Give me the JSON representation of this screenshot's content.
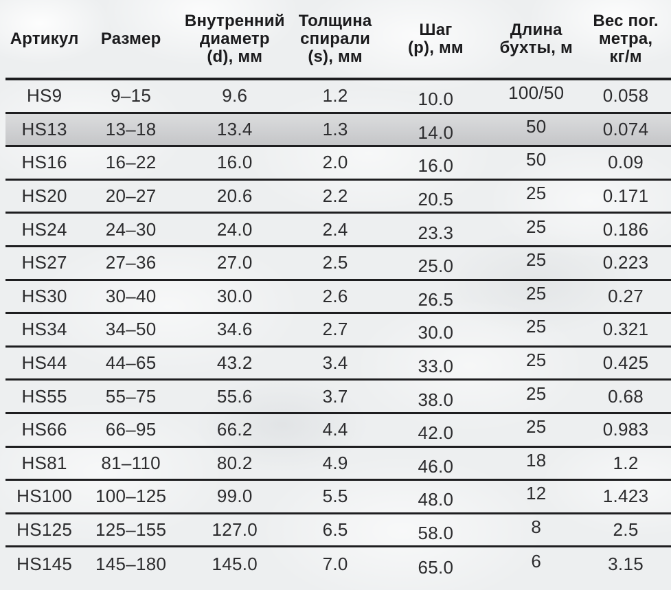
{
  "colors": {
    "page_background": "#edeff0",
    "rule_line": "#1e1e20",
    "header_text": "#1b1b1d",
    "cell_text": "#2c2c2e",
    "highlight_row": "#cdced0"
  },
  "table": {
    "columns": [
      {
        "label": "Артикул"
      },
      {
        "label": "Размер"
      },
      {
        "label": "Внутренний\nдиаметр\n(d), мм"
      },
      {
        "label": "Толщина\nспирали\n(s), мм"
      },
      {
        "label": "Шаг\n(p), мм"
      },
      {
        "label": "Длина\nбухты, м"
      },
      {
        "label": "Вес пог.\nметра,\nкг/м"
      }
    ],
    "rows": [
      {
        "article": "HS9",
        "size": "9–15",
        "inner_diameter_mm": "9.6",
        "spiral_thickness_mm": "1.2",
        "pitch_mm": "10.0",
        "coil_length_m": "100/50",
        "weight_kg_per_m": "0.058",
        "highlighted": false
      },
      {
        "article": "HS13",
        "size": "13–18",
        "inner_diameter_mm": "13.4",
        "spiral_thickness_mm": "1.3",
        "pitch_mm": "14.0",
        "coil_length_m": "50",
        "weight_kg_per_m": "0.074",
        "highlighted": true
      },
      {
        "article": "HS16",
        "size": "16–22",
        "inner_diameter_mm": "16.0",
        "spiral_thickness_mm": "2.0",
        "pitch_mm": "16.0",
        "coil_length_m": "50",
        "weight_kg_per_m": "0.09",
        "highlighted": false
      },
      {
        "article": "HS20",
        "size": "20–27",
        "inner_diameter_mm": "20.6",
        "spiral_thickness_mm": "2.2",
        "pitch_mm": "20.5",
        "coil_length_m": "25",
        "weight_kg_per_m": "0.171",
        "highlighted": false
      },
      {
        "article": "HS24",
        "size": "24–30",
        "inner_diameter_mm": "24.0",
        "spiral_thickness_mm": "2.4",
        "pitch_mm": "23.3",
        "coil_length_m": "25",
        "weight_kg_per_m": "0.186",
        "highlighted": false
      },
      {
        "article": "HS27",
        "size": "27–36",
        "inner_diameter_mm": "27.0",
        "spiral_thickness_mm": "2.5",
        "pitch_mm": "25.0",
        "coil_length_m": "25",
        "weight_kg_per_m": "0.223",
        "highlighted": false
      },
      {
        "article": "HS30",
        "size": "30–40",
        "inner_diameter_mm": "30.0",
        "spiral_thickness_mm": "2.6",
        "pitch_mm": "26.5",
        "coil_length_m": "25",
        "weight_kg_per_m": "0.27",
        "highlighted": false
      },
      {
        "article": "HS34",
        "size": "34–50",
        "inner_diameter_mm": "34.6",
        "spiral_thickness_mm": "2.7",
        "pitch_mm": "30.0",
        "coil_length_m": "25",
        "weight_kg_per_m": "0.321",
        "highlighted": false
      },
      {
        "article": "HS44",
        "size": "44–65",
        "inner_diameter_mm": "43.2",
        "spiral_thickness_mm": "3.4",
        "pitch_mm": "33.0",
        "coil_length_m": "25",
        "weight_kg_per_m": "0.425",
        "highlighted": false
      },
      {
        "article": "HS55",
        "size": "55–75",
        "inner_diameter_mm": "55.6",
        "spiral_thickness_mm": "3.7",
        "pitch_mm": "38.0",
        "coil_length_m": "25",
        "weight_kg_per_m": "0.68",
        "highlighted": false
      },
      {
        "article": "HS66",
        "size": "66–95",
        "inner_diameter_mm": "66.2",
        "spiral_thickness_mm": "4.4",
        "pitch_mm": "42.0",
        "coil_length_m": "25",
        "weight_kg_per_m": "0.983",
        "highlighted": false
      },
      {
        "article": "HS81",
        "size": "81–110",
        "inner_diameter_mm": "80.2",
        "spiral_thickness_mm": "4.9",
        "pitch_mm": "46.0",
        "coil_length_m": "18",
        "weight_kg_per_m": "1.2",
        "highlighted": false
      },
      {
        "article": "HS100",
        "size": "100–125",
        "inner_diameter_mm": "99.0",
        "spiral_thickness_mm": "5.5",
        "pitch_mm": "48.0",
        "coil_length_m": "12",
        "weight_kg_per_m": "1.423",
        "highlighted": false
      },
      {
        "article": "HS125",
        "size": "125–155",
        "inner_diameter_mm": "127.0",
        "spiral_thickness_mm": "6.5",
        "pitch_mm": "58.0",
        "coil_length_m": "8",
        "weight_kg_per_m": "2.5",
        "highlighted": false
      },
      {
        "article": "HS145",
        "size": "145–180",
        "inner_diameter_mm": "145.0",
        "spiral_thickness_mm": "7.0",
        "pitch_mm": "65.0",
        "coil_length_m": "6",
        "weight_kg_per_m": "3.15",
        "highlighted": false
      }
    ]
  }
}
